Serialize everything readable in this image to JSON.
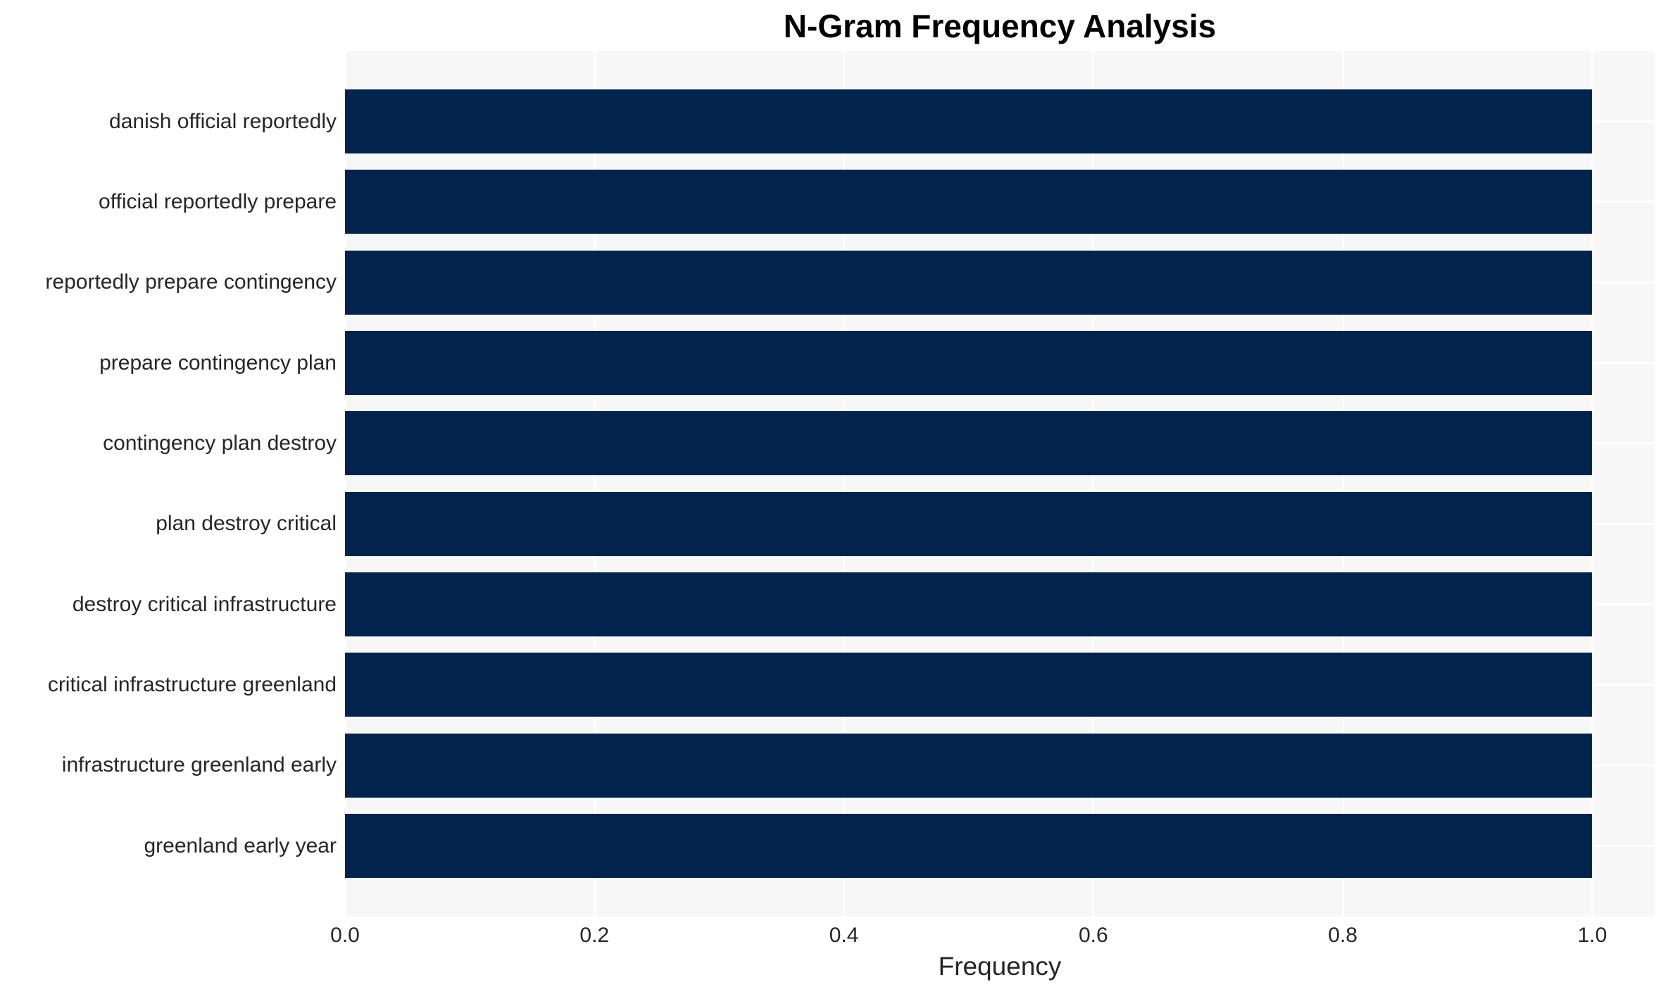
{
  "chart_data": {
    "type": "bar",
    "orientation": "horizontal",
    "title": "N-Gram Frequency Analysis",
    "xlabel": "Frequency",
    "ylabel": "",
    "categories": [
      "danish official reportedly",
      "official reportedly prepare",
      "reportedly prepare contingency",
      "prepare contingency plan",
      "contingency plan destroy",
      "plan destroy critical",
      "destroy critical infrastructure",
      "critical infrastructure greenland",
      "infrastructure greenland early",
      "greenland early year"
    ],
    "values": [
      1.0,
      1.0,
      1.0,
      1.0,
      1.0,
      1.0,
      1.0,
      1.0,
      1.0,
      1.0
    ],
    "xlim": [
      0,
      1.05
    ],
    "xticks": [
      0.0,
      0.2,
      0.4,
      0.6,
      0.8,
      1.0
    ],
    "xtick_labels": [
      "0.0",
      "0.2",
      "0.4",
      "0.6",
      "0.8",
      "1.0"
    ],
    "grid": true,
    "legend": false,
    "colors": {
      "bar": "#02234D",
      "plot_bg": "#F7F7F8",
      "grid": "#FFFFFF",
      "tick_text": "#262626",
      "title_text": "#000000"
    }
  }
}
